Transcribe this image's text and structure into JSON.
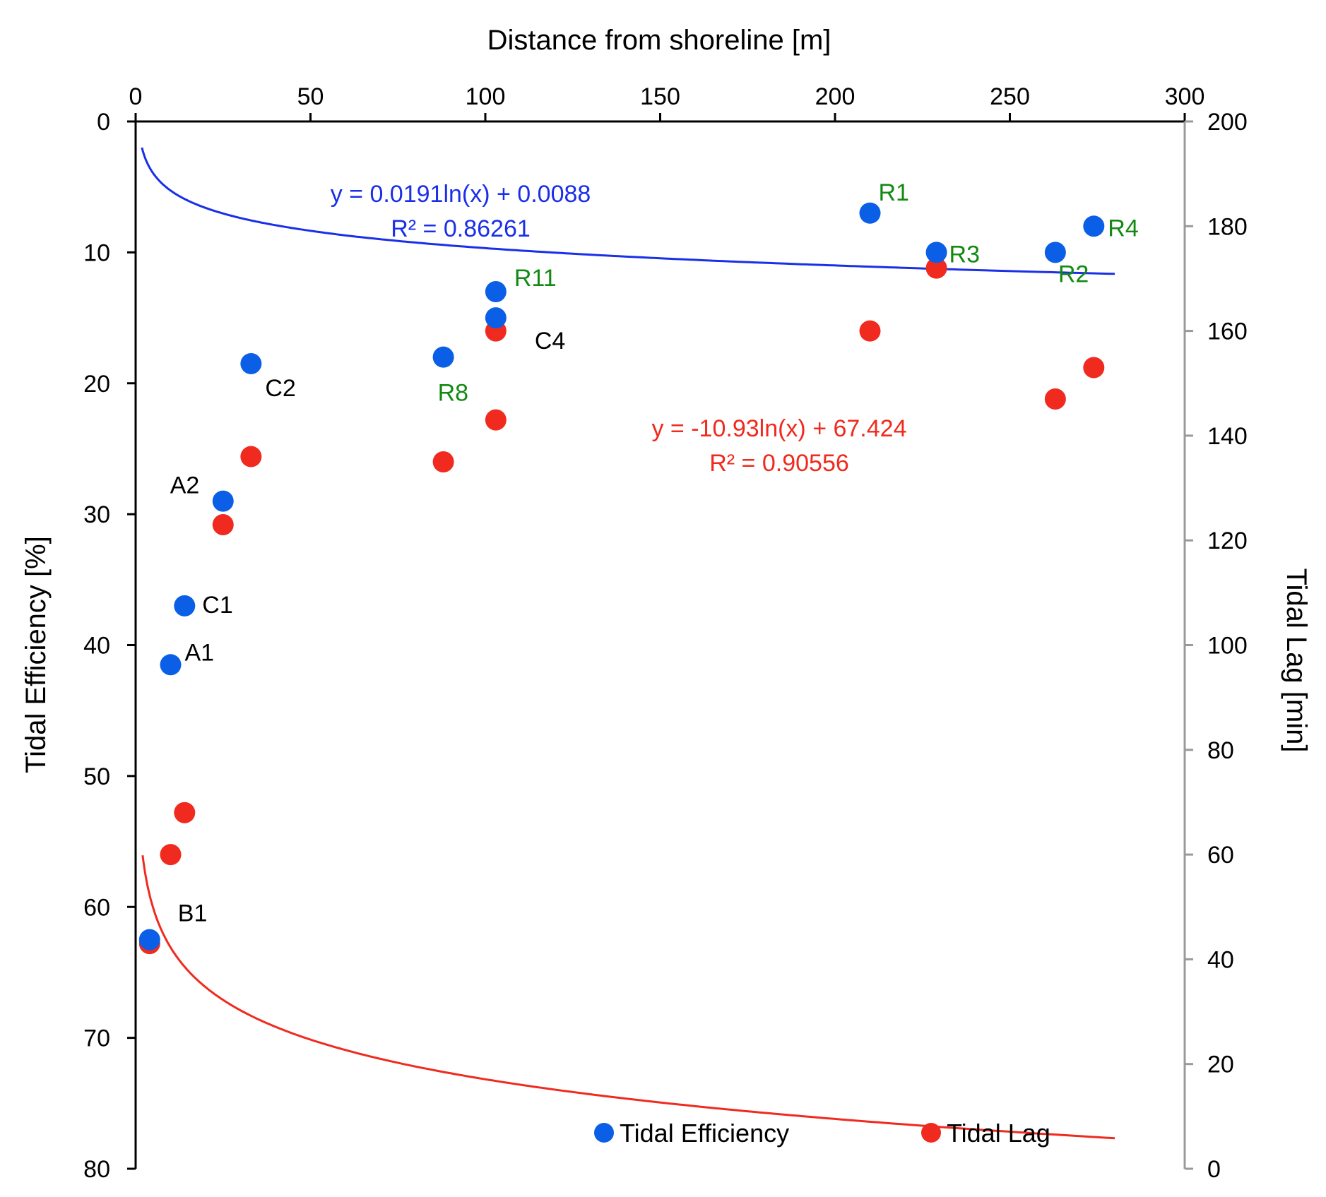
{
  "chart_data": {
    "type": "scatter",
    "title": "",
    "x_axis": {
      "label": "Distance from shoreline [m]",
      "position": "top",
      "range": [
        0,
        300
      ],
      "ticks": [
        0,
        50,
        100,
        150,
        200,
        250,
        300
      ]
    },
    "y_left": {
      "label": "Tidal Efficiency [%]",
      "range": [
        0,
        80
      ],
      "inverted": true,
      "ticks": [
        0,
        10,
        20,
        30,
        40,
        50,
        60,
        70,
        80
      ]
    },
    "y_right": {
      "label": "Tidal Lag  [min]",
      "range": [
        0,
        200
      ],
      "ticks": [
        0,
        20,
        40,
        60,
        80,
        100,
        120,
        140,
        160,
        180,
        200
      ]
    },
    "grid": false,
    "legend_position": "bottom-right",
    "series": [
      {
        "name": "Tidal Efficiency",
        "color": "#0a5fe6",
        "axis": "left",
        "points": [
          {
            "x": 4,
            "y": 62.5
          },
          {
            "x": 10,
            "y": 41.5
          },
          {
            "x": 14,
            "y": 37
          },
          {
            "x": 25,
            "y": 29
          },
          {
            "x": 33,
            "y": 18.5
          },
          {
            "x": 88,
            "y": 18
          },
          {
            "x": 103,
            "y": 15
          },
          {
            "x": 103,
            "y": 13
          },
          {
            "x": 210,
            "y": 7
          },
          {
            "x": 229,
            "y": 10
          },
          {
            "x": 263,
            "y": 10
          },
          {
            "x": 274,
            "y": 8
          }
        ]
      },
      {
        "name": "Tidal Lag",
        "color": "#f02a1e",
        "axis": "right",
        "points": [
          {
            "x": 4,
            "y": 43
          },
          {
            "x": 10,
            "y": 60
          },
          {
            "x": 14,
            "y": 68
          },
          {
            "x": 25,
            "y": 123
          },
          {
            "x": 33,
            "y": 136
          },
          {
            "x": 88,
            "y": 135
          },
          {
            "x": 103,
            "y": 143
          },
          {
            "x": 103,
            "y": 160
          },
          {
            "x": 210,
            "y": 160
          },
          {
            "x": 229,
            "y": 172
          },
          {
            "x": 263,
            "y": 147
          },
          {
            "x": 274,
            "y": 153
          }
        ]
      }
    ],
    "trendlines": [
      {
        "series": "Tidal Efficiency",
        "type": "logarithmic",
        "equation": "y = 0.0191ln(x) + 0.0088",
        "r2": "R² = 0.86261",
        "a": 0.0191,
        "b": 0.0088,
        "scale": 100,
        "x_range": [
          1.8,
          280
        ],
        "color": "#1a2fe8"
      },
      {
        "series": "Tidal Lag",
        "type": "logarithmic",
        "equation": "y = -10.93ln(x) + 67.424",
        "r2": "R² = 0.90556",
        "a": -10.93,
        "b": 67.424,
        "scale": 1,
        "x_range": [
          2.0,
          280
        ],
        "color": "#f02a1e"
      }
    ],
    "annotations": [
      {
        "text": "B1",
        "color": "#000000",
        "x": 4,
        "y": 62.5
      },
      {
        "text": "A1",
        "color": "#000000",
        "x": 10,
        "y": 41.5
      },
      {
        "text": "C1",
        "color": "#000000",
        "x": 14,
        "y": 37
      },
      {
        "text": "A2",
        "color": "#000000",
        "x": 25,
        "y": 29
      },
      {
        "text": "C2",
        "color": "#000000",
        "x": 33,
        "y": 18.5
      },
      {
        "text": "R8",
        "color": "#128a12",
        "x": 88,
        "y": 18
      },
      {
        "text": "C4",
        "color": "#000000",
        "x": 103,
        "y": 15
      },
      {
        "text": "R11",
        "color": "#128a12",
        "x": 103,
        "y": 13
      },
      {
        "text": "R1",
        "color": "#128a12",
        "x": 210,
        "y": 7
      },
      {
        "text": "R3",
        "color": "#128a12",
        "x": 229,
        "y": 10
      },
      {
        "text": "R2",
        "color": "#128a12",
        "x": 263,
        "y": 10
      },
      {
        "text": "R4",
        "color": "#128a12",
        "x": 274,
        "y": 8
      }
    ]
  }
}
